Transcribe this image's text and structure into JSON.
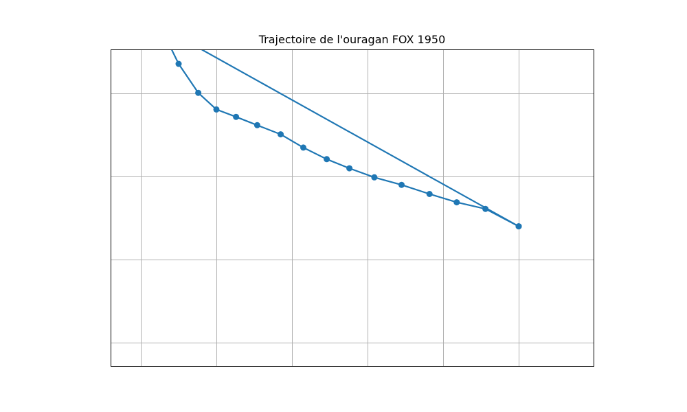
{
  "chart_data": {
    "type": "line",
    "title": "Trajectoire de l'ouragan FOX 1950",
    "xlabel": "",
    "ylabel": "",
    "xlim": [
      -101.4,
      -69.4
    ],
    "ylim": [
      11.43,
      30.57
    ],
    "x_gridlines": [
      -99.4,
      -94.4,
      -89.4,
      -84.4,
      -79.4,
      -74.4
    ],
    "y_gridlines": [
      12.9,
      17.9,
      22.9,
      27.9
    ],
    "grid": true,
    "series": [
      {
        "marker": "circle",
        "points": [
          {
            "x": -74.4,
            "y": 19.9
          },
          {
            "x": -76.6,
            "y": 20.95
          },
          {
            "x": -78.5,
            "y": 21.35
          },
          {
            "x": -80.3,
            "y": 21.85
          },
          {
            "x": -82.15,
            "y": 22.4
          },
          {
            "x": -83.95,
            "y": 22.85
          },
          {
            "x": -85.6,
            "y": 23.4
          },
          {
            "x": -87.1,
            "y": 23.95
          },
          {
            "x": -88.65,
            "y": 24.65
          },
          {
            "x": -90.15,
            "y": 25.45
          },
          {
            "x": -91.7,
            "y": 26.0
          },
          {
            "x": -93.1,
            "y": 26.5
          },
          {
            "x": -94.4,
            "y": 26.95
          },
          {
            "x": -95.6,
            "y": 27.95
          },
          {
            "x": -96.9,
            "y": 29.7
          },
          {
            "x": -98.1,
            "y": 31.95
          },
          {
            "x": -74.4,
            "y": 19.9
          }
        ]
      }
    ]
  },
  "colors": {
    "series": "#1f77b4",
    "grid": "#b0b0b0",
    "axes": "#000000",
    "background": "#ffffff"
  }
}
